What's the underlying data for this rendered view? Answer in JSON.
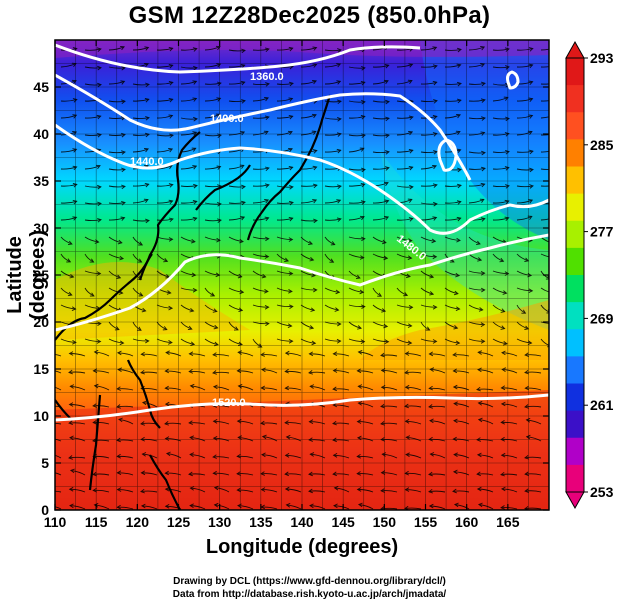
{
  "title": "GSM 12Z28Dec2025 (850.0hPa)",
  "xlabel": "Longitude (degrees)",
  "ylabel": "Latitude  (degrees)",
  "credits": [
    "Drawing by DCL (https://www.gfd-dennou.org/library/dcl/)",
    "Data from http://database.rish.kyoto-u.ac.jp/arch/jmadata/"
  ],
  "map": {
    "lon_range": [
      110,
      170
    ],
    "lat_range": [
      0,
      50
    ],
    "x_ticks": [
      "110",
      "115",
      "120",
      "125",
      "130",
      "135",
      "140",
      "145",
      "150",
      "155",
      "160",
      "165"
    ],
    "y_ticks": [
      "0",
      "5",
      "10",
      "15",
      "20",
      "25",
      "30",
      "35",
      "40",
      "45"
    ]
  },
  "colorbar": {
    "min": 253,
    "max": 293,
    "labels": [
      "293",
      "285",
      "277",
      "269",
      "261",
      "253"
    ],
    "colors": [
      "#e8007a",
      "#b000c8",
      "#3b10c8",
      "#1030e0",
      "#1878ff",
      "#00c0ff",
      "#00e0c0",
      "#00e060",
      "#50e000",
      "#a8f000",
      "#e8f000",
      "#ffc000",
      "#ff8000",
      "#ff5020",
      "#f03020",
      "#e01818"
    ]
  },
  "contours": [
    {
      "label": "1360.0"
    },
    {
      "label": "1400.0"
    },
    {
      "label": "1440.0"
    },
    {
      "label": "1480.0"
    },
    {
      "label": "1520.0"
    }
  ]
}
